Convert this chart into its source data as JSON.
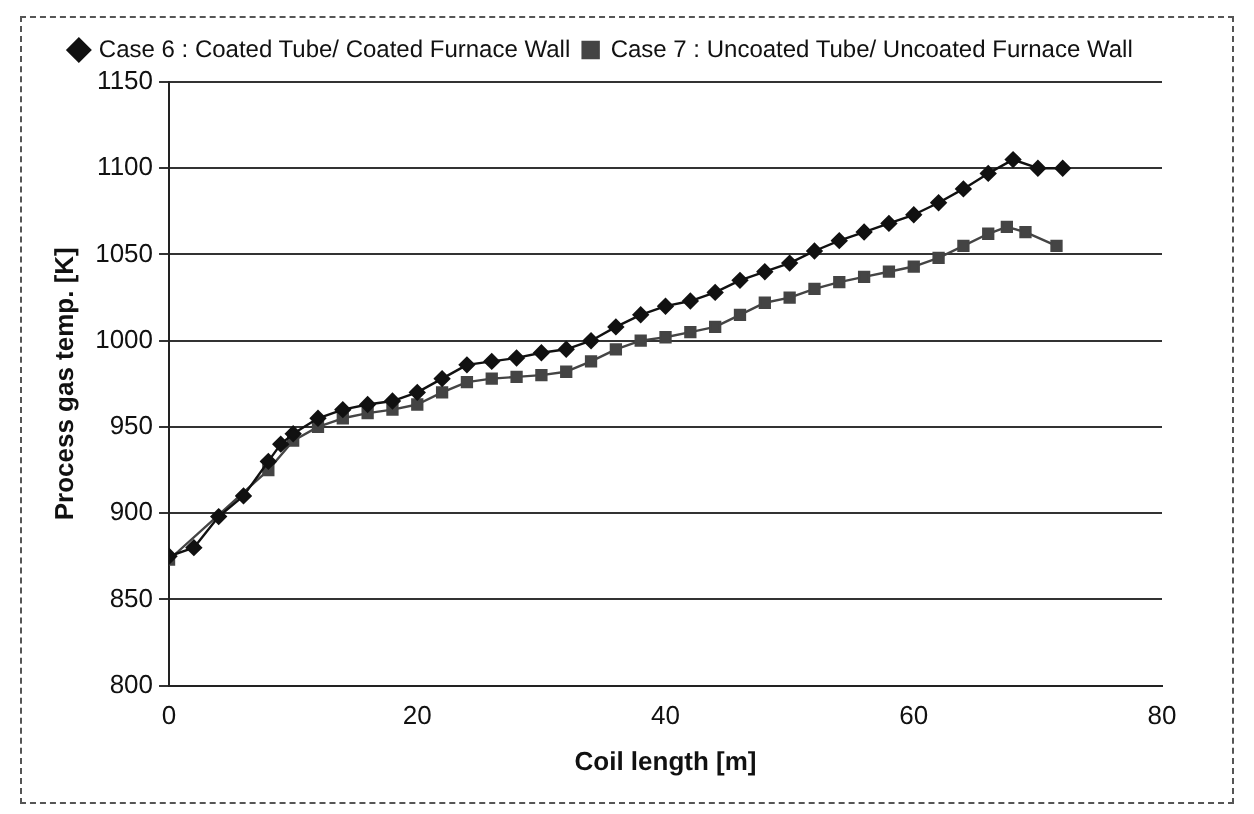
{
  "chart_data": {
    "type": "line",
    "xlabel": "Coil length [m]",
    "ylabel": "Process gas temp. [K]",
    "xlim": [
      0,
      80
    ],
    "xticks": [
      0,
      20,
      40,
      60,
      80
    ],
    "ylim": [
      800,
      1150
    ],
    "yticks": [
      800,
      850,
      900,
      950,
      1000,
      1050,
      1100,
      1150
    ],
    "grid": "y",
    "legend": "top",
    "series": [
      {
        "name": "Case 6 : Coated Tube/ Coated Furnace Wall",
        "color": "#111111",
        "marker": "diamond",
        "x": [
          0,
          2,
          4,
          6,
          8,
          9,
          10,
          12,
          14,
          16,
          18,
          20,
          22,
          24,
          26,
          28,
          30,
          32,
          34,
          36,
          38,
          40,
          42,
          44,
          46,
          48,
          50,
          52,
          54,
          56,
          58,
          60,
          62,
          64,
          66,
          68,
          70,
          72
        ],
        "values": [
          875,
          880,
          898,
          910,
          930,
          940,
          946,
          955,
          960,
          963,
          965,
          970,
          978,
          986,
          988,
          990,
          993,
          995,
          1000,
          1008,
          1015,
          1020,
          1023,
          1028,
          1035,
          1040,
          1045,
          1052,
          1058,
          1063,
          1068,
          1073,
          1080,
          1088,
          1097,
          1105,
          1100,
          1100
        ]
      },
      {
        "name": "Case 7 : Uncoated Tube/ Uncoated Furnace Wall",
        "color": "#444444",
        "marker": "square",
        "x": [
          0,
          2,
          4,
          6,
          8,
          10,
          12,
          14,
          16,
          18,
          20,
          22,
          24,
          26,
          28,
          30,
          32,
          34,
          36,
          38,
          40,
          42,
          44,
          46,
          48,
          50,
          52,
          54,
          56,
          58,
          60,
          62,
          64,
          66,
          67.5,
          69,
          71.5
        ],
        "values": [
          873,
          null,
          null,
          null,
          925,
          942,
          950,
          955,
          958,
          960,
          963,
          970,
          976,
          978,
          979,
          980,
          982,
          988,
          995,
          1000,
          1002,
          1005,
          1008,
          1015,
          1022,
          1025,
          1030,
          1034,
          1037,
          1040,
          1043,
          1048,
          1055,
          1062,
          1066,
          1063,
          1055
        ]
      }
    ]
  }
}
